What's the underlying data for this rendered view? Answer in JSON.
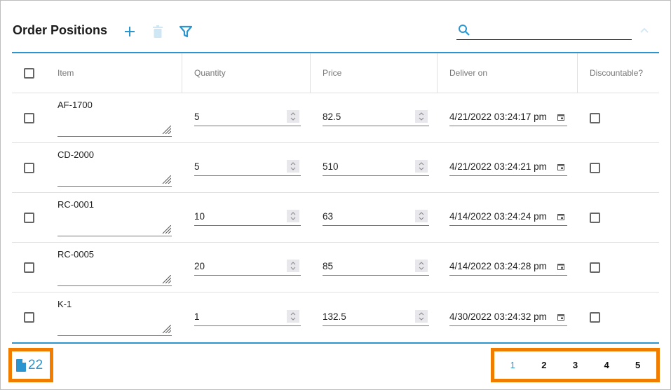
{
  "header": {
    "title": "Order Positions",
    "search_value": "",
    "icons": [
      "plus-icon",
      "trash-icon",
      "filter-icon",
      "search-icon",
      "chevron-up-icon"
    ]
  },
  "columns": [
    "Item",
    "Quantity",
    "Price",
    "Deliver on",
    "Discountable?"
  ],
  "rows": [
    {
      "item": "AF-1700",
      "quantity": "5",
      "price": "82.5",
      "deliver_on": "4/21/2022 03:24:17 pm",
      "discountable": false,
      "selected": false
    },
    {
      "item": "CD-2000",
      "quantity": "5",
      "price": "510",
      "deliver_on": "4/21/2022 03:24:21 pm",
      "discountable": false,
      "selected": false
    },
    {
      "item": "RC-0001",
      "quantity": "10",
      "price": "63",
      "deliver_on": "4/14/2022 03:24:24 pm",
      "discountable": false,
      "selected": false
    },
    {
      "item": "RC-0005",
      "quantity": "20",
      "price": "85",
      "deliver_on": "4/14/2022 03:24:28 pm",
      "discountable": false,
      "selected": false
    },
    {
      "item": "K-1",
      "quantity": "1",
      "price": "132.5",
      "deliver_on": "4/30/2022 03:24:32 pm",
      "discountable": false,
      "selected": false
    }
  ],
  "footer": {
    "record_count": "22",
    "pages": [
      "1",
      "2",
      "3",
      "4",
      "5"
    ],
    "current_page": "1"
  },
  "colors": {
    "accent": "#2a95cf",
    "highlight": "#f07d00"
  }
}
